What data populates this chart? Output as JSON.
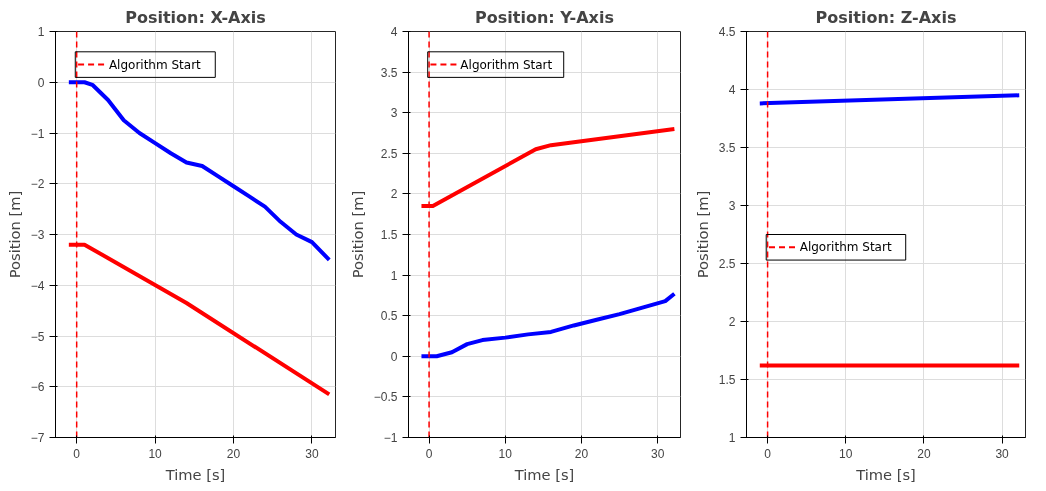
{
  "chart_data": [
    {
      "type": "line",
      "title": "Position: X-Axis",
      "xlabel": "Time [s]",
      "ylabel": "Position [m]",
      "xlim": [
        -2.7,
        33
      ],
      "ylim": [
        -7,
        1
      ],
      "xticks": [
        0,
        10,
        20,
        30
      ],
      "yticks": [
        -7,
        -6,
        -5,
        -4,
        -3,
        -2,
        -1,
        0,
        1
      ],
      "grid": true,
      "legend": "top left",
      "line_style": "solid",
      "series": [
        {
          "color": "#ff0000",
          "x": [
            -1,
            1,
            14,
            32.2
          ],
          "values": [
            -3.2,
            -3.2,
            -4.35,
            -6.15
          ]
        },
        {
          "color": "#0000ff",
          "x": [
            -1,
            1,
            2,
            4,
            6,
            8,
            10,
            12,
            14,
            16,
            18,
            20,
            22,
            24,
            26,
            28,
            30,
            32.2
          ],
          "values": [
            0,
            0,
            -0.05,
            -0.35,
            -0.75,
            -1.0,
            -1.2,
            -1.4,
            -1.58,
            -1.65,
            -1.85,
            -2.05,
            -2.25,
            -2.45,
            -2.75,
            -3.0,
            -3.15,
            -3.5
          ]
        }
      ],
      "ref_lines": [
        {
          "axis": "x",
          "value": 0,
          "label": "Algorithm Start",
          "color": "#ff0000",
          "line_style": "dashed"
        }
      ]
    },
    {
      "type": "line",
      "title": "Position: Y-Axis",
      "xlabel": "Time [s]",
      "ylabel": "Position [m]",
      "xlim": [
        -2.7,
        33
      ],
      "ylim": [
        -1,
        4
      ],
      "xticks": [
        0,
        10,
        20,
        30
      ],
      "yticks": [
        -1,
        -0.5,
        0,
        0.5,
        1,
        1.5,
        2,
        2.5,
        3,
        3.5,
        4
      ],
      "grid": true,
      "legend": "top",
      "line_style": "solid",
      "series": [
        {
          "color": "#ff0000",
          "x": [
            -1,
            0.5,
            14,
            16,
            32.2
          ],
          "values": [
            1.85,
            1.85,
            2.55,
            2.6,
            2.8
          ]
        },
        {
          "color": "#0000ff",
          "x": [
            -1,
            1,
            3,
            5,
            7,
            10,
            13,
            16,
            19,
            22,
            25,
            28,
            31,
            32.2
          ],
          "values": [
            0,
            0,
            0.05,
            0.15,
            0.2,
            0.23,
            0.27,
            0.3,
            0.38,
            0.45,
            0.52,
            0.6,
            0.68,
            0.77
          ]
        }
      ],
      "ref_lines": [
        {
          "axis": "x",
          "value": 0,
          "label": "Algorithm Start",
          "color": "#ff0000",
          "line_style": "dashed"
        }
      ]
    },
    {
      "type": "line",
      "title": "Position: Z-Axis",
      "xlabel": "Time [s]",
      "ylabel": "Position [m]",
      "xlim": [
        -2.7,
        33
      ],
      "ylim": [
        1,
        4.5
      ],
      "xticks": [
        0,
        10,
        20,
        30
      ],
      "yticks": [
        1,
        1.5,
        2,
        2.5,
        3,
        3.5,
        4,
        4.5
      ],
      "grid": true,
      "legend": "center",
      "line_style": "solid",
      "series": [
        {
          "color": "#ff0000",
          "x": [
            -1,
            32.2
          ],
          "values": [
            1.62,
            1.62
          ]
        },
        {
          "color": "#0000ff",
          "x": [
            -1,
            32.2
          ],
          "values": [
            3.88,
            3.95
          ]
        }
      ],
      "ref_lines": [
        {
          "axis": "x",
          "value": 0,
          "label": "Algorithm Start",
          "color": "#ff0000",
          "line_style": "dashed"
        }
      ]
    }
  ]
}
